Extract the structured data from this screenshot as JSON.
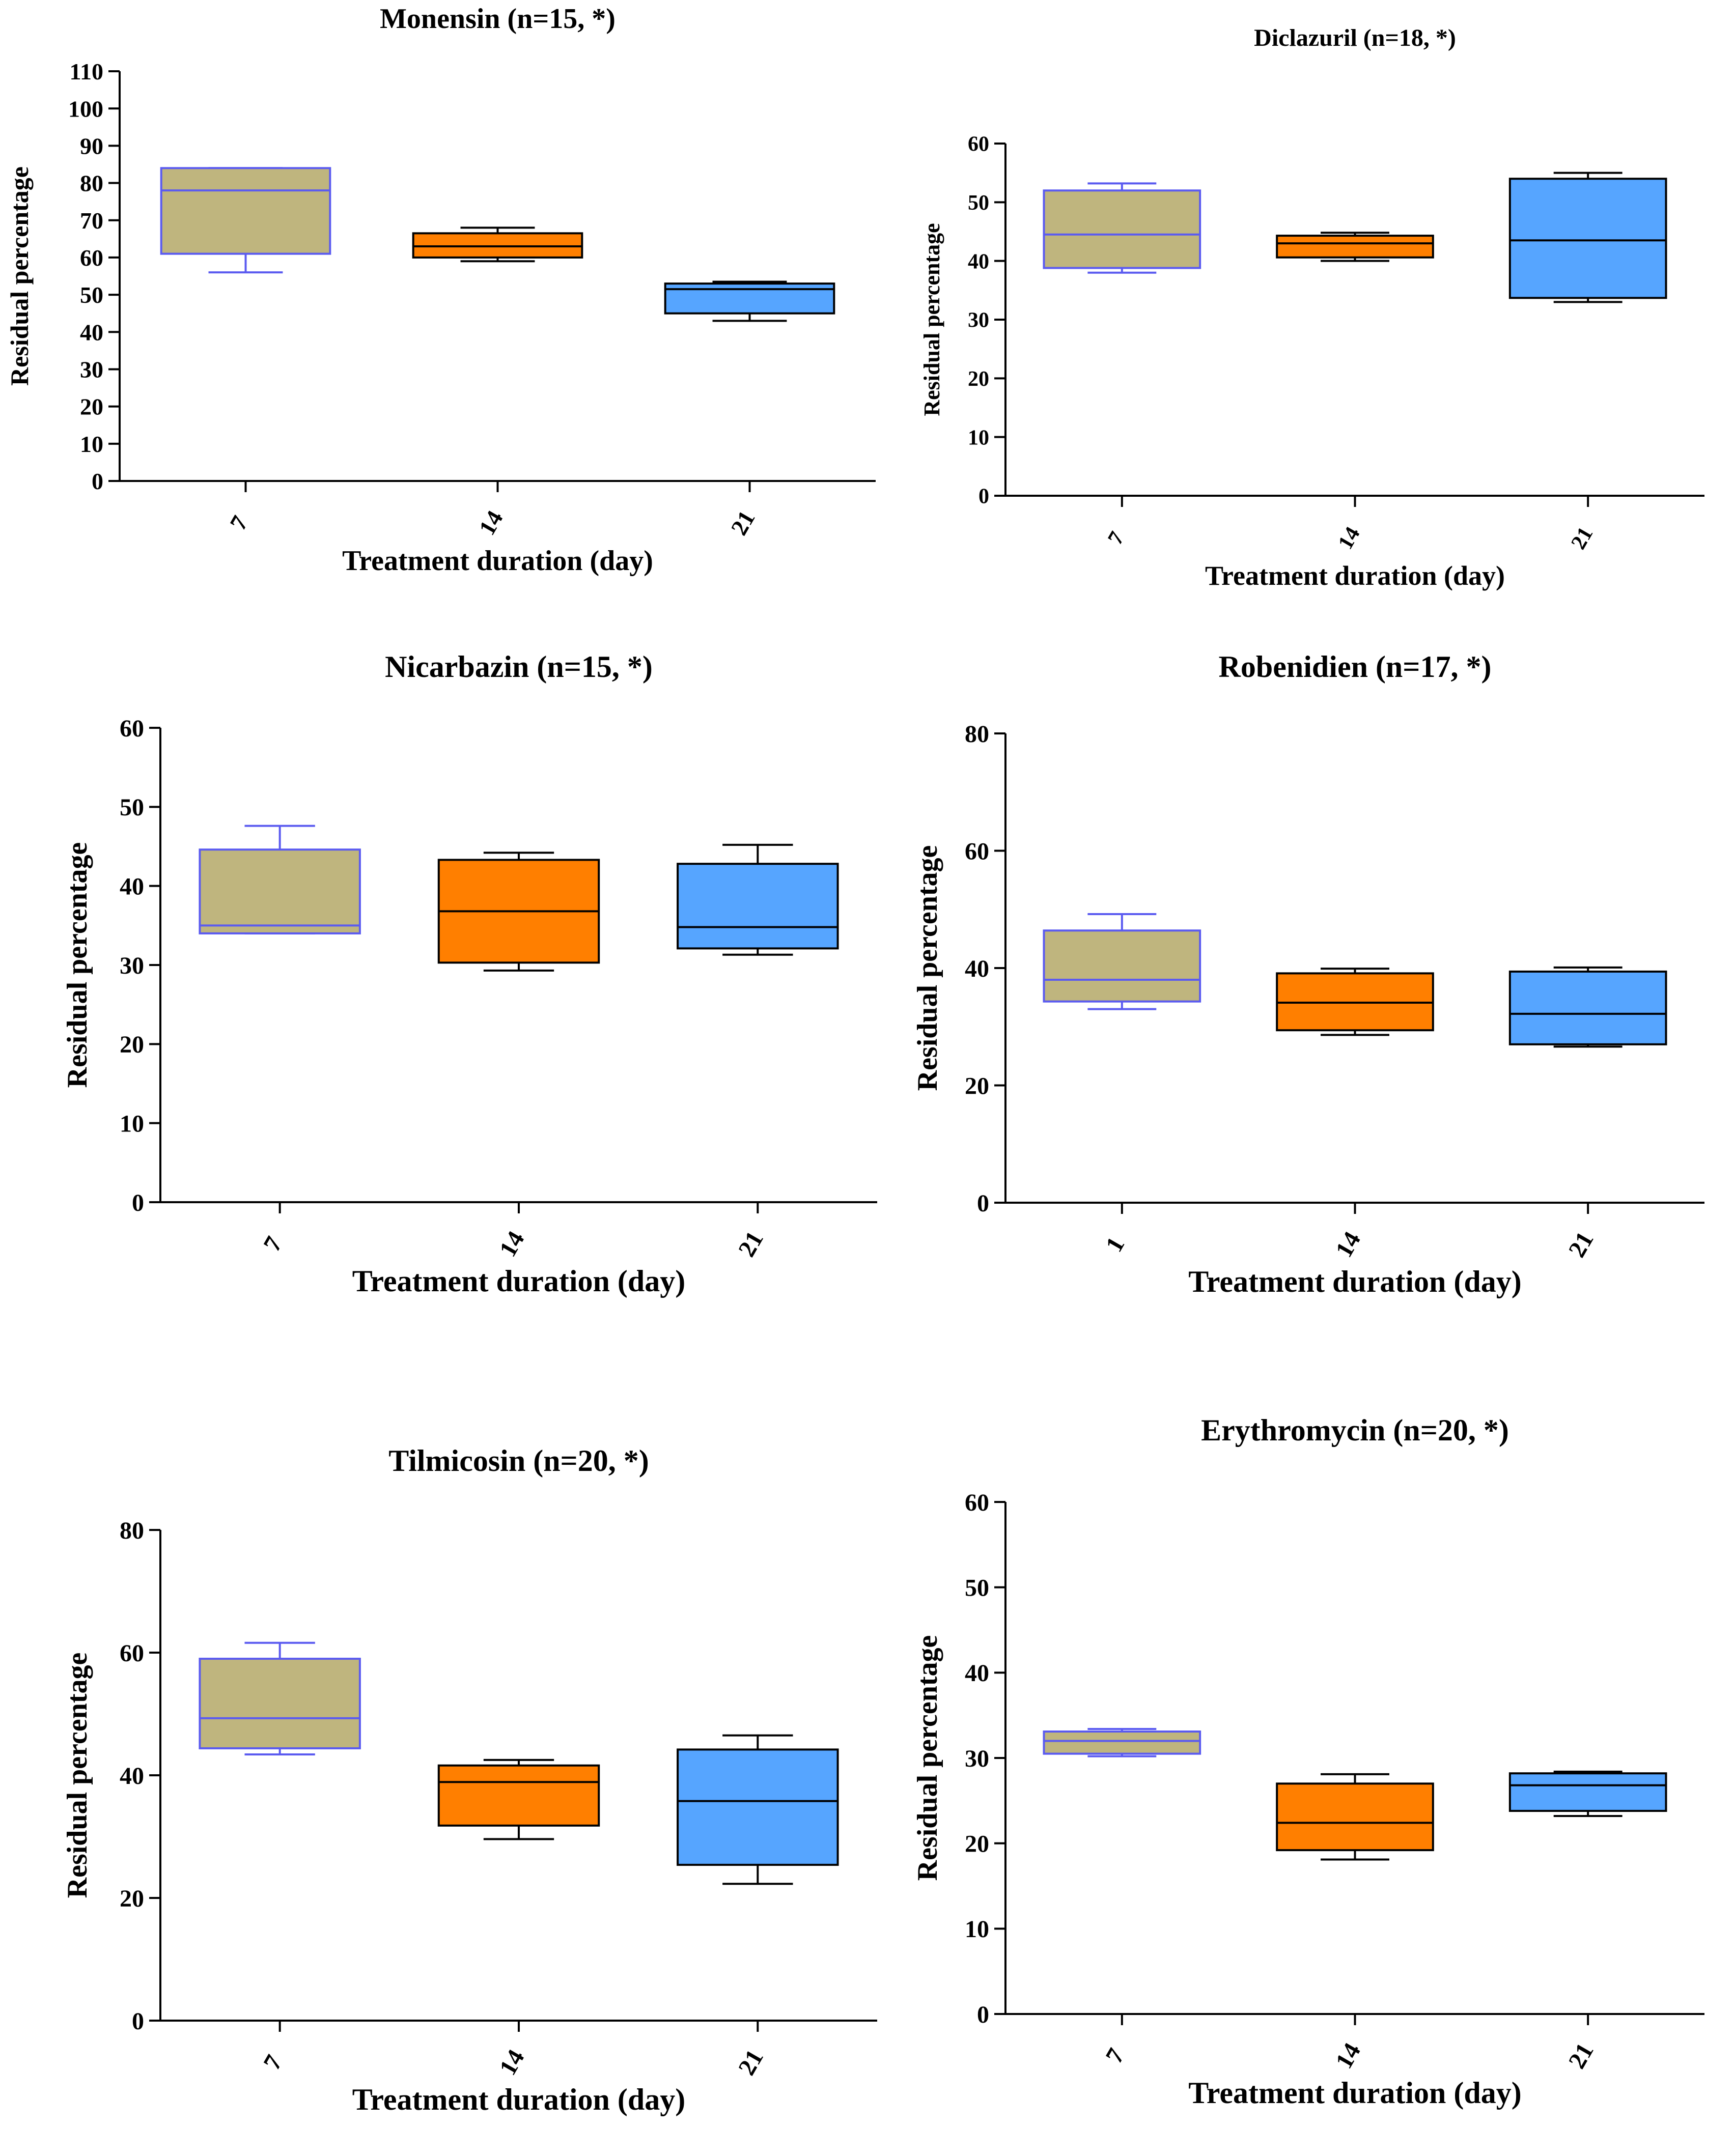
{
  "colors": {
    "day7_fill": "#bfb57e",
    "day14_fill": "#ff7f00",
    "day21_fill": "#56a5ff",
    "blue_line": "#5b5bf0",
    "black_line": "#000000"
  },
  "chart_data": [
    {
      "type": "box",
      "title": "Monensin (n=15, *)",
      "xlabel": "Treatment duration (day)",
      "ylabel": "Residual percentage",
      "ylim": [
        0,
        110
      ],
      "yticks": [
        0,
        10,
        20,
        30,
        40,
        50,
        60,
        70,
        80,
        90,
        100,
        110
      ],
      "categories": [
        "7",
        "14",
        "21"
      ],
      "boxes": [
        {
          "min": 56,
          "q1": 61,
          "median": 78,
          "q3": 84,
          "max": 84
        },
        {
          "min": 59,
          "q1": 60,
          "median": 63,
          "q3": 66.5,
          "max": 68
        },
        {
          "min": 43,
          "q1": 45,
          "median": 51.5,
          "q3": 53,
          "max": 53.5
        }
      ],
      "grid": false
    },
    {
      "type": "box",
      "title": "Diclazuril (n=18, *)",
      "xlabel": "Treatment duration (day)",
      "ylabel": "Residual percentage",
      "ylim": [
        0,
        60
      ],
      "yticks": [
        0,
        10,
        20,
        30,
        40,
        50,
        60
      ],
      "categories": [
        "7",
        "14",
        "21"
      ],
      "boxes": [
        {
          "min": 38,
          "q1": 38.8,
          "median": 44.5,
          "q3": 52,
          "max": 53.2
        },
        {
          "min": 40,
          "q1": 40.6,
          "median": 43,
          "q3": 44.3,
          "max": 44.8
        },
        {
          "min": 33,
          "q1": 33.7,
          "median": 43.5,
          "q3": 54,
          "max": 55
        }
      ],
      "grid": false
    },
    {
      "type": "box",
      "title": "Nicarbazin (n=15, *)",
      "xlabel": "Treatment duration (day)",
      "ylabel": "Residual percentage",
      "ylim": [
        0,
        60
      ],
      "yticks": [
        0,
        10,
        20,
        30,
        40,
        50,
        60
      ],
      "categories": [
        "7",
        "14",
        "21"
      ],
      "boxes": [
        {
          "min": 34,
          "q1": 34,
          "median": 35,
          "q3": 44.6,
          "max": 47.6
        },
        {
          "min": 29.3,
          "q1": 30.3,
          "median": 36.8,
          "q3": 43.3,
          "max": 44.2
        },
        {
          "min": 31.3,
          "q1": 32.1,
          "median": 34.8,
          "q3": 42.8,
          "max": 45.2
        }
      ],
      "grid": false
    },
    {
      "type": "box",
      "title": "Robenidien (n=17, *)",
      "xlabel": "Treatment duration (day)",
      "ylabel": "Residual percentage",
      "ylim": [
        0,
        80
      ],
      "yticks": [
        0,
        20,
        40,
        60,
        80
      ],
      "categories": [
        "1",
        "14",
        "21"
      ],
      "boxes": [
        {
          "min": 33,
          "q1": 34.3,
          "median": 38,
          "q3": 46.4,
          "max": 49.2
        },
        {
          "min": 28.6,
          "q1": 29.4,
          "median": 34.1,
          "q3": 39.1,
          "max": 39.9
        },
        {
          "min": 26.6,
          "q1": 27,
          "median": 32.2,
          "q3": 39.4,
          "max": 40.1
        }
      ],
      "grid": false
    },
    {
      "type": "box",
      "title": "Tilmicosin (n=20, *)",
      "xlabel": "Treatment duration (day)",
      "ylabel": "Residual percentage",
      "ylim": [
        0,
        80
      ],
      "yticks": [
        0,
        20,
        40,
        60,
        80
      ],
      "categories": [
        "7",
        "14",
        "21"
      ],
      "boxes": [
        {
          "min": 43.4,
          "q1": 44.4,
          "median": 49.3,
          "q3": 59,
          "max": 61.6
        },
        {
          "min": 29.6,
          "q1": 31.8,
          "median": 38.9,
          "q3": 41.6,
          "max": 42.5
        },
        {
          "min": 22.3,
          "q1": 25.4,
          "median": 35.8,
          "q3": 44.2,
          "max": 46.5
        }
      ],
      "grid": false
    },
    {
      "type": "box",
      "title": "Erythromycin (n=20, *)",
      "xlabel": "Treatment duration (day)",
      "ylabel": "Residual percentage",
      "ylim": [
        0,
        60
      ],
      "yticks": [
        0,
        10,
        20,
        30,
        40,
        50,
        60
      ],
      "categories": [
        "7",
        "14",
        "21"
      ],
      "boxes": [
        {
          "min": 30.2,
          "q1": 30.5,
          "median": 32,
          "q3": 33.1,
          "max": 33.4
        },
        {
          "min": 18.1,
          "q1": 19.2,
          "median": 22.4,
          "q3": 27,
          "max": 28.1
        },
        {
          "min": 23.2,
          "q1": 23.8,
          "median": 26.8,
          "q3": 28.2,
          "max": 28.4
        }
      ],
      "grid": false
    }
  ]
}
